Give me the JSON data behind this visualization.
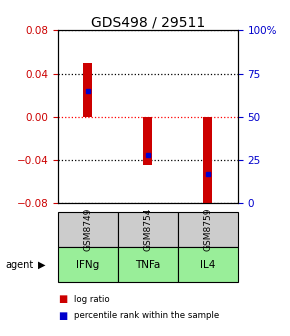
{
  "title": "GDS498 / 29511",
  "samples": [
    "GSM8749",
    "GSM8754",
    "GSM8759"
  ],
  "agents": [
    "IFNg",
    "TNFa",
    "IL4"
  ],
  "log_ratios": [
    0.05,
    -0.045,
    -0.08
  ],
  "percentile_ranks": [
    65,
    28,
    17
  ],
  "ylim": [
    -0.08,
    0.08
  ],
  "right_yticks": [
    0,
    25,
    50,
    75,
    100
  ],
  "left_yticks": [
    -0.08,
    -0.04,
    0,
    0.04,
    0.08
  ],
  "left_color": "#cc0000",
  "right_color": "#0000cc",
  "bar_color": "#cc0000",
  "marker_color": "#0000cc",
  "agent_bg_color": "#99ee99",
  "sample_bg_color": "#cccccc",
  "title_fontsize": 10,
  "tick_fontsize": 7.5,
  "bar_width": 0.15
}
